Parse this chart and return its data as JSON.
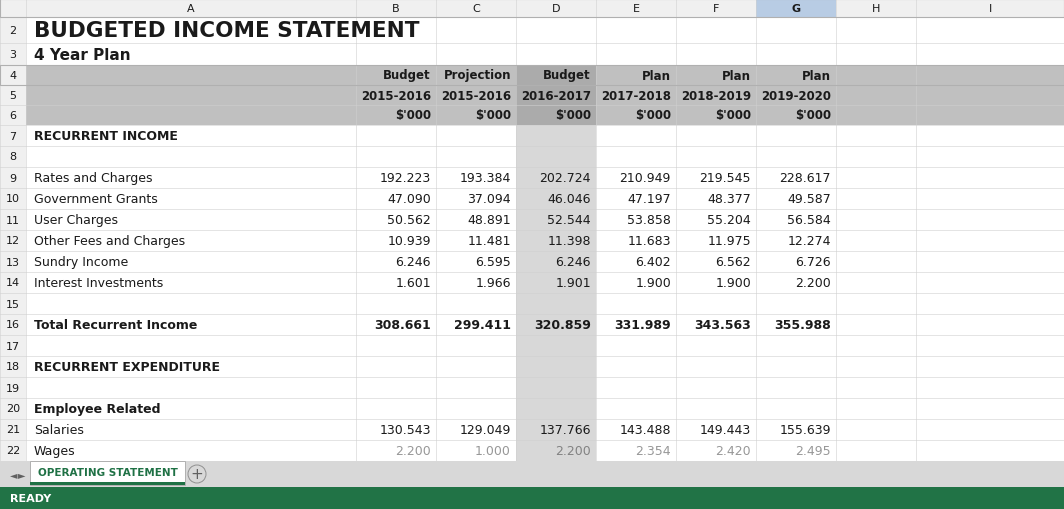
{
  "title": "BUDGETED INCOME STATEMENT",
  "subtitle": "4 Year Plan",
  "col_headers_line1": [
    "Budget",
    "Projection",
    "Budget",
    "Plan",
    "Plan",
    "Plan"
  ],
  "col_headers_line2": [
    "2015-2016",
    "2015-2016",
    "2016-2017",
    "2017-2018",
    "2018-2019",
    "2019-2020"
  ],
  "col_headers_line3": [
    "$'000",
    "$'000",
    "$'000",
    "$'000",
    "$'000",
    "$'000"
  ],
  "rows": [
    {
      "row": 7,
      "label": "RECURRENT INCOME",
      "values": [
        null,
        null,
        null,
        null,
        null,
        null
      ],
      "bold": true
    },
    {
      "row": 8,
      "label": "",
      "values": [
        null,
        null,
        null,
        null,
        null,
        null
      ],
      "bold": false
    },
    {
      "row": 9,
      "label": "Rates and Charges",
      "values": [
        "192.223",
        "193.384",
        "202.724",
        "210.949",
        "219.545",
        "228.617"
      ],
      "bold": false
    },
    {
      "row": 10,
      "label": "Government Grants",
      "values": [
        "47.090",
        "37.094",
        "46.046",
        "47.197",
        "48.377",
        "49.587"
      ],
      "bold": false
    },
    {
      "row": 11,
      "label": "User Charges",
      "values": [
        "50.562",
        "48.891",
        "52.544",
        "53.858",
        "55.204",
        "56.584"
      ],
      "bold": false
    },
    {
      "row": 12,
      "label": "Other Fees and Charges",
      "values": [
        "10.939",
        "11.481",
        "11.398",
        "11.683",
        "11.975",
        "12.274"
      ],
      "bold": false
    },
    {
      "row": 13,
      "label": "Sundry Income",
      "values": [
        "6.246",
        "6.595",
        "6.246",
        "6.402",
        "6.562",
        "6.726"
      ],
      "bold": false
    },
    {
      "row": 14,
      "label": "Interest Investments",
      "values": [
        "1.601",
        "1.966",
        "1.901",
        "1.900",
        "1.900",
        "2.200"
      ],
      "bold": false
    },
    {
      "row": 15,
      "label": "",
      "values": [
        null,
        null,
        null,
        null,
        null,
        null
      ],
      "bold": false
    },
    {
      "row": 16,
      "label": "Total Recurrent Income",
      "values": [
        "308.661",
        "299.411",
        "320.859",
        "331.989",
        "343.563",
        "355.988"
      ],
      "bold": true
    },
    {
      "row": 17,
      "label": "",
      "values": [
        null,
        null,
        null,
        null,
        null,
        null
      ],
      "bold": false
    },
    {
      "row": 18,
      "label": "RECURRENT EXPENDITURE",
      "values": [
        null,
        null,
        null,
        null,
        null,
        null
      ],
      "bold": true
    },
    {
      "row": 19,
      "label": "",
      "values": [
        null,
        null,
        null,
        null,
        null,
        null
      ],
      "bold": false
    },
    {
      "row": 20,
      "label": "Employee Related",
      "values": [
        null,
        null,
        null,
        null,
        null,
        null
      ],
      "bold": true
    },
    {
      "row": 21,
      "label": "Salaries",
      "values": [
        "130.543",
        "129.049",
        "137.766",
        "143.488",
        "149.443",
        "155.639"
      ],
      "bold": false
    },
    {
      "row": 22,
      "label": "Wages",
      "values": [
        "2.200",
        "1.000",
        "2.200",
        "2.354",
        "2.420",
        "2.495"
      ],
      "bold": false,
      "partial": true
    }
  ],
  "col_letters": [
    "A",
    "B",
    "C",
    "D",
    "E",
    "F",
    "G",
    "H",
    "I"
  ],
  "bg_header_color": "#c0c0c0",
  "bg_col_d_color": "#b0b0b0",
  "bg_col_g_color": "#b8cce4",
  "text_color": "#1a1a1a",
  "border_color": "#b0b0b0",
  "tab_bg_color": "#e8e8e8",
  "tab_color": "#1f7145",
  "tab_text_color": "#1f7145",
  "tab_label": "OPERATING STATEMENT",
  "status_color": "#217346",
  "excel_bg": "#f0f0f0",
  "grid_line_color": "#d0d0d0",
  "white": "#ffffff"
}
